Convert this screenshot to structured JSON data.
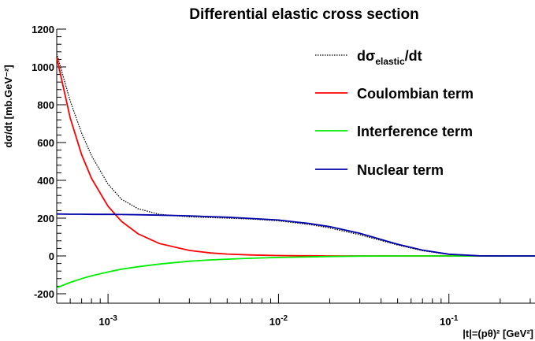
{
  "chart_data": {
    "type": "line",
    "title": "Differential elastic cross section",
    "xlabel": "|t|=(pθ)² [GeV²]",
    "ylabel": "dσ/dt [mb.GeV⁻²]",
    "x_scale": "log",
    "xlim": [
      0.0005,
      0.32
    ],
    "ylim": [
      -250,
      1200
    ],
    "x_ticks": [
      {
        "value": 0.001,
        "label": "10",
        "exp": "-3"
      },
      {
        "value": 0.01,
        "label": "10",
        "exp": "-2"
      },
      {
        "value": 0.1,
        "label": "10",
        "exp": "-1"
      }
    ],
    "y_ticks": [
      -200,
      0,
      200,
      400,
      600,
      800,
      1000,
      1200
    ],
    "grid": false,
    "legend_position": "top-right",
    "x": [
      0.0005,
      0.0006,
      0.0007,
      0.0008,
      0.001,
      0.0012,
      0.0015,
      0.002,
      0.003,
      0.004,
      0.005,
      0.007,
      0.01,
      0.015,
      0.02,
      0.03,
      0.05,
      0.07,
      0.1,
      0.15,
      0.2,
      0.25,
      0.32
    ],
    "series": [
      {
        "name_main": "dσ",
        "name_sub": "elastic",
        "name_tail": "/dt",
        "color": "#000000",
        "dash": "dotted",
        "values": [
          1070,
          820,
          650,
          530,
          380,
          300,
          250,
          220,
          207,
          203,
          200,
          195,
          186,
          167,
          148,
          112,
          58,
          28,
          8,
          1,
          0,
          0,
          0
        ]
      },
      {
        "name_main": "Coulombian term",
        "color": "#ff0000",
        "dash": "solid",
        "values": [
          1050,
          730,
          536,
          410,
          263,
          183,
          117,
          66,
          29,
          16,
          10,
          5,
          2,
          1,
          0,
          0,
          0,
          0,
          0,
          0,
          0,
          0,
          0
        ]
      },
      {
        "name_main": "Interference term",
        "color": "#00ee00",
        "dash": "solid",
        "values": [
          -168,
          -140,
          -120,
          -105,
          -85,
          -70,
          -57,
          -43,
          -28,
          -21,
          -17,
          -12,
          -8,
          -5,
          -3,
          -1,
          0,
          0,
          0,
          0,
          0,
          0,
          0
        ]
      },
      {
        "name_main": "Nuclear term",
        "color": "#0000aa",
        "dash": "solid",
        "values": [
          222,
          221,
          221,
          220,
          220,
          219,
          218,
          216,
          212,
          208,
          205,
          198,
          190,
          172,
          155,
          120,
          62,
          31,
          9,
          1,
          0,
          0,
          0
        ]
      }
    ]
  }
}
